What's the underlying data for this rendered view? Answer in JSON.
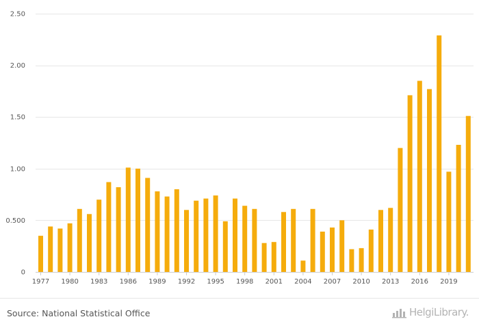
{
  "chart_data": {
    "type": "bar",
    "categories": [
      "1977",
      "1978",
      "1979",
      "1980",
      "1981",
      "1982",
      "1983",
      "1984",
      "1985",
      "1986",
      "1987",
      "1988",
      "1989",
      "1990",
      "1991",
      "1992",
      "1993",
      "1994",
      "1995",
      "1996",
      "1997",
      "1998",
      "1999",
      "2000",
      "2001",
      "2002",
      "2003",
      "2004",
      "2005",
      "2006",
      "2007",
      "2008",
      "2009",
      "2010",
      "2011",
      "2012",
      "2013",
      "2014",
      "2015",
      "2016",
      "2017",
      "2018",
      "2019",
      "2020",
      "2021"
    ],
    "x_tick_labels": [
      "1977",
      "1980",
      "1983",
      "1986",
      "1989",
      "1992",
      "1995",
      "1998",
      "2001",
      "2004",
      "2007",
      "2010",
      "2013",
      "2016",
      "2019"
    ],
    "values": [
      0.35,
      0.44,
      0.42,
      0.47,
      0.61,
      0.56,
      0.7,
      0.87,
      0.82,
      1.01,
      1.0,
      0.91,
      0.78,
      0.73,
      0.8,
      0.6,
      0.69,
      0.71,
      0.74,
      0.49,
      0.71,
      0.64,
      0.61,
      0.28,
      0.29,
      0.58,
      0.61,
      0.11,
      0.61,
      0.39,
      0.43,
      0.5,
      0.22,
      0.23,
      0.41,
      0.6,
      0.62,
      1.2,
      1.71,
      1.85,
      1.77,
      2.29,
      0.97,
      1.23,
      1.51
    ],
    "y_ticks": [
      0,
      0.5,
      1.0,
      1.5,
      2.0,
      2.5
    ],
    "y_tick_labels": [
      "0",
      "0.500",
      "1.00",
      "1.50",
      "2.00",
      "2.50"
    ],
    "ylim": [
      0,
      2.5
    ],
    "title": "",
    "xlabel": "",
    "ylabel": "",
    "grid": true,
    "legend": "none",
    "colors": {
      "bar": "#f5ac0c",
      "grid": "#e6e6e6",
      "axis": "#cccccc",
      "text": "#555555"
    }
  },
  "footer": {
    "source": "Source: National Statistical Office",
    "logo_text": "HelgiLibrary.",
    "logo_icon": "helgi-logo-icon"
  }
}
